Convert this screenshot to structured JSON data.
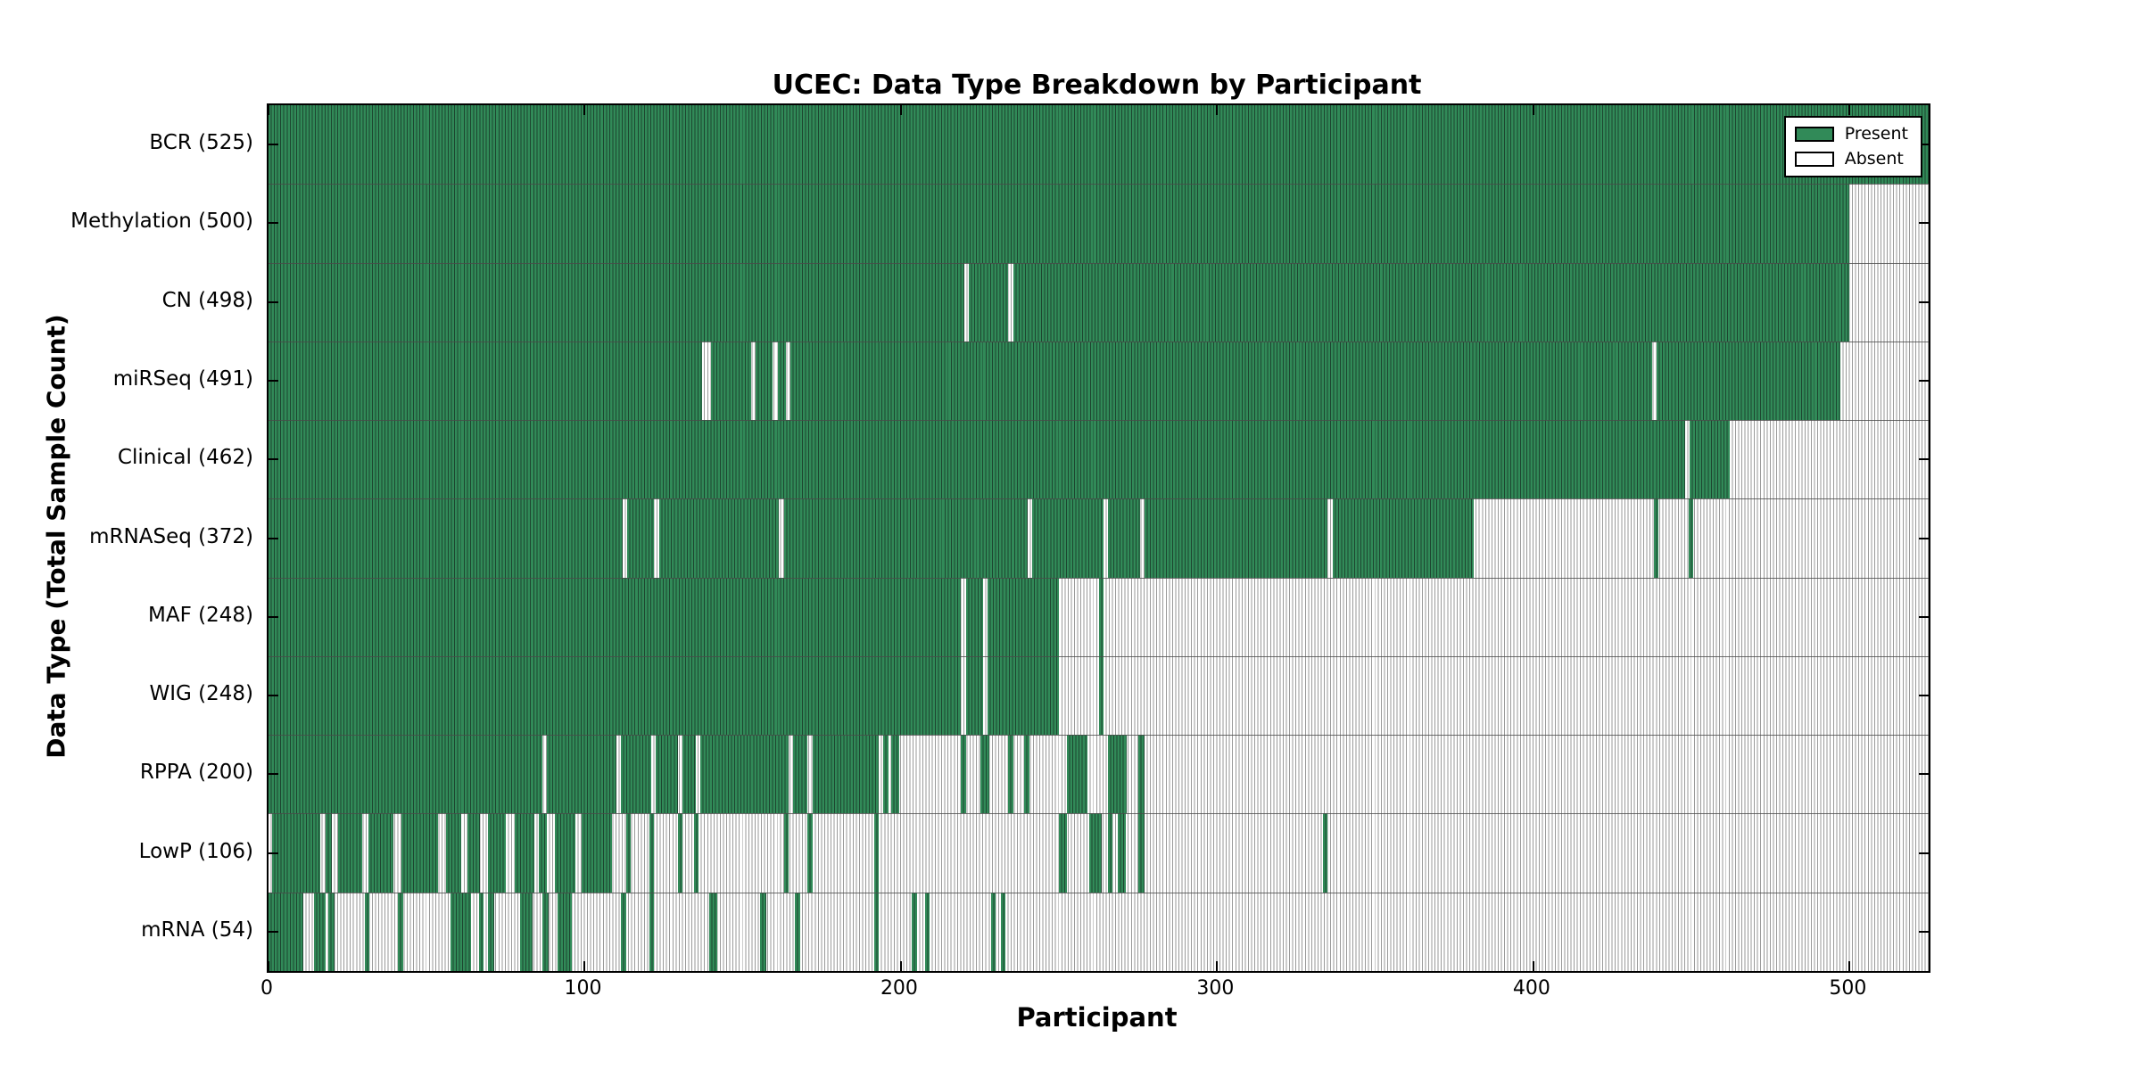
{
  "colors": {
    "present": "#318a58",
    "present_edge": "#1d4630",
    "absent": "#ffffff",
    "absent_edge": "#9a9a9a",
    "row_divider": "#4a4a4a",
    "spine": "#000000"
  },
  "chart_data": {
    "type": "heatmap",
    "title": "UCEC: Data Type Breakdown by Participant",
    "xlabel": "Participant",
    "ylabel": "Data Type (Total Sample Count)",
    "xlim": [
      0,
      525
    ],
    "x_ticks": [
      0,
      100,
      200,
      300,
      400,
      500
    ],
    "grid": false,
    "legend": [
      "Present",
      "Absent"
    ],
    "legend_position": "upper right",
    "value_encoding": "green segment = data present for participant range [start,end); white striped = absent",
    "rows": [
      {
        "label": "BCR (525)",
        "datatype": "BCR",
        "total": 525,
        "segments": [
          [
            0,
            525
          ]
        ]
      },
      {
        "label": "Methylation (500)",
        "datatype": "Methylation",
        "total": 500,
        "segments": [
          [
            0,
            500
          ]
        ]
      },
      {
        "label": "CN (498)",
        "datatype": "CN",
        "total": 498,
        "segments": [
          [
            0,
            220
          ],
          [
            221.5,
            234
          ],
          [
            235.5,
            500
          ]
        ]
      },
      {
        "label": "miRSeq (491)",
        "datatype": "miRSeq",
        "total": 491,
        "segments": [
          [
            0,
            137
          ],
          [
            140,
            152.5
          ],
          [
            154,
            159.5
          ],
          [
            161,
            163.5
          ],
          [
            165,
            437.5
          ],
          [
            439,
            497
          ]
        ]
      },
      {
        "label": "Clinical (462)",
        "datatype": "Clinical",
        "total": 462,
        "segments": [
          [
            0,
            448
          ],
          [
            449.5,
            462
          ]
        ]
      },
      {
        "label": "mRNASeq (372)",
        "datatype": "mRNASeq",
        "total": 372,
        "segments": [
          [
            0,
            112
          ],
          [
            113.5,
            122
          ],
          [
            123.5,
            161.5
          ],
          [
            163,
            240
          ],
          [
            241.5,
            264
          ],
          [
            265.5,
            275.5
          ],
          [
            277,
            335
          ],
          [
            336.5,
            381
          ],
          [
            438,
            439.5
          ],
          [
            449,
            450.5
          ]
        ]
      },
      {
        "label": "MAF (248)",
        "datatype": "MAF",
        "total": 248,
        "segments": [
          [
            0,
            219
          ],
          [
            220.5,
            226
          ],
          [
            227.5,
            250
          ],
          [
            262.5,
            264
          ]
        ]
      },
      {
        "label": "WIG (248)",
        "datatype": "WIG",
        "total": 248,
        "segments": [
          [
            0,
            219
          ],
          [
            220.5,
            226
          ],
          [
            227.5,
            250
          ],
          [
            262.5,
            264
          ]
        ]
      },
      {
        "label": "RPPA (200)",
        "datatype": "RPPA",
        "total": 200,
        "segments": [
          [
            0,
            86.5
          ],
          [
            88,
            110
          ],
          [
            111.5,
            121
          ],
          [
            122.5,
            129.5
          ],
          [
            131,
            135
          ],
          [
            136.5,
            164.5
          ],
          [
            166,
            170.5
          ],
          [
            172,
            193
          ],
          [
            194.5,
            196
          ],
          [
            197,
            199.5
          ],
          [
            219,
            220.5
          ],
          [
            225,
            228
          ],
          [
            234,
            235.5
          ],
          [
            239,
            240.5
          ],
          [
            252.5,
            259
          ],
          [
            265.5,
            271.5
          ],
          [
            275,
            277
          ]
        ]
      },
      {
        "label": "LowP (106)",
        "datatype": "LowP",
        "total": 106,
        "segments": [
          [
            1,
            16.5
          ],
          [
            18,
            20
          ],
          [
            22,
            29.5
          ],
          [
            31.5,
            39.5
          ],
          [
            42,
            53.5
          ],
          [
            56,
            61
          ],
          [
            63,
            67
          ],
          [
            69.5,
            75
          ],
          [
            78,
            84
          ],
          [
            85.5,
            88
          ],
          [
            90.5,
            97
          ],
          [
            99,
            108.5
          ],
          [
            113,
            114.5
          ],
          [
            120.5,
            122
          ],
          [
            129.5,
            131
          ],
          [
            134.5,
            136
          ],
          [
            163,
            164.5
          ],
          [
            170.5,
            172
          ],
          [
            191.5,
            193
          ],
          [
            250,
            252.5
          ],
          [
            259.5,
            263.5
          ],
          [
            265.5,
            267
          ],
          [
            268.5,
            271
          ],
          [
            275,
            277
          ],
          [
            333.5,
            335
          ]
        ]
      },
      {
        "label": "mRNA (54)",
        "datatype": "mRNA",
        "total": 54,
        "segments": [
          [
            0,
            11
          ],
          [
            14.5,
            18
          ],
          [
            19,
            21
          ],
          [
            30.5,
            32
          ],
          [
            41,
            42.5
          ],
          [
            57.5,
            64
          ],
          [
            66.5,
            68
          ],
          [
            69.5,
            71.5
          ],
          [
            79.5,
            83.5
          ],
          [
            86.5,
            88.5
          ],
          [
            91.5,
            96
          ],
          [
            111.5,
            113
          ],
          [
            120.5,
            122
          ],
          [
            139.5,
            142
          ],
          [
            155.5,
            157.5
          ],
          [
            166.5,
            168
          ],
          [
            191.5,
            193
          ],
          [
            203.5,
            205
          ],
          [
            207.5,
            209
          ],
          [
            228.5,
            230
          ],
          [
            231.5,
            233
          ]
        ]
      }
    ]
  }
}
